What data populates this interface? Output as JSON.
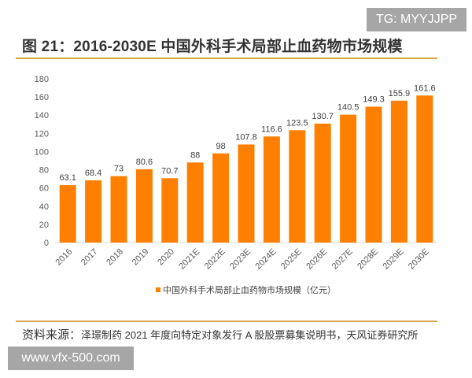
{
  "title": "图 21：2016-2030E 中国外科手术局部止血药物市场规模",
  "source_label": "资料来源：",
  "source_text": "泽璟制药 2021 年度向特定对象发行 A 股股票募集说明书，天风证券研究所",
  "watermark_top": "TG: MYYJJPP",
  "watermark_bottom": "www.vfx-500.com",
  "chart_data": {
    "type": "bar",
    "categories": [
      "2016",
      "2017",
      "2018",
      "2019",
      "2020",
      "2021E",
      "2022E",
      "2023E",
      "2024E",
      "2025E",
      "2026E",
      "2027E",
      "2028E",
      "2029E",
      "2030E"
    ],
    "series": [
      {
        "name": "中国外科手术局部止血药物市场规模（亿元）",
        "values": [
          63.1,
          68.4,
          73,
          80.6,
          70.7,
          88,
          98,
          107.8,
          116.6,
          123.5,
          130.7,
          140.5,
          149.3,
          155.9,
          161.6
        ],
        "color": "#ff8000"
      }
    ],
    "data_labels": [
      "63.1",
      "68.4",
      "73",
      "80.6",
      "70.7",
      "88",
      "98",
      "107.8",
      "116.6",
      "123.5",
      "130.7",
      "140.5",
      "149.3",
      "155.9",
      "161.6"
    ],
    "yticks": [
      0,
      20,
      40,
      60,
      80,
      100,
      120,
      140,
      160,
      180
    ],
    "ylim": [
      0,
      180
    ],
    "grid": false,
    "legend": "bottom"
  }
}
